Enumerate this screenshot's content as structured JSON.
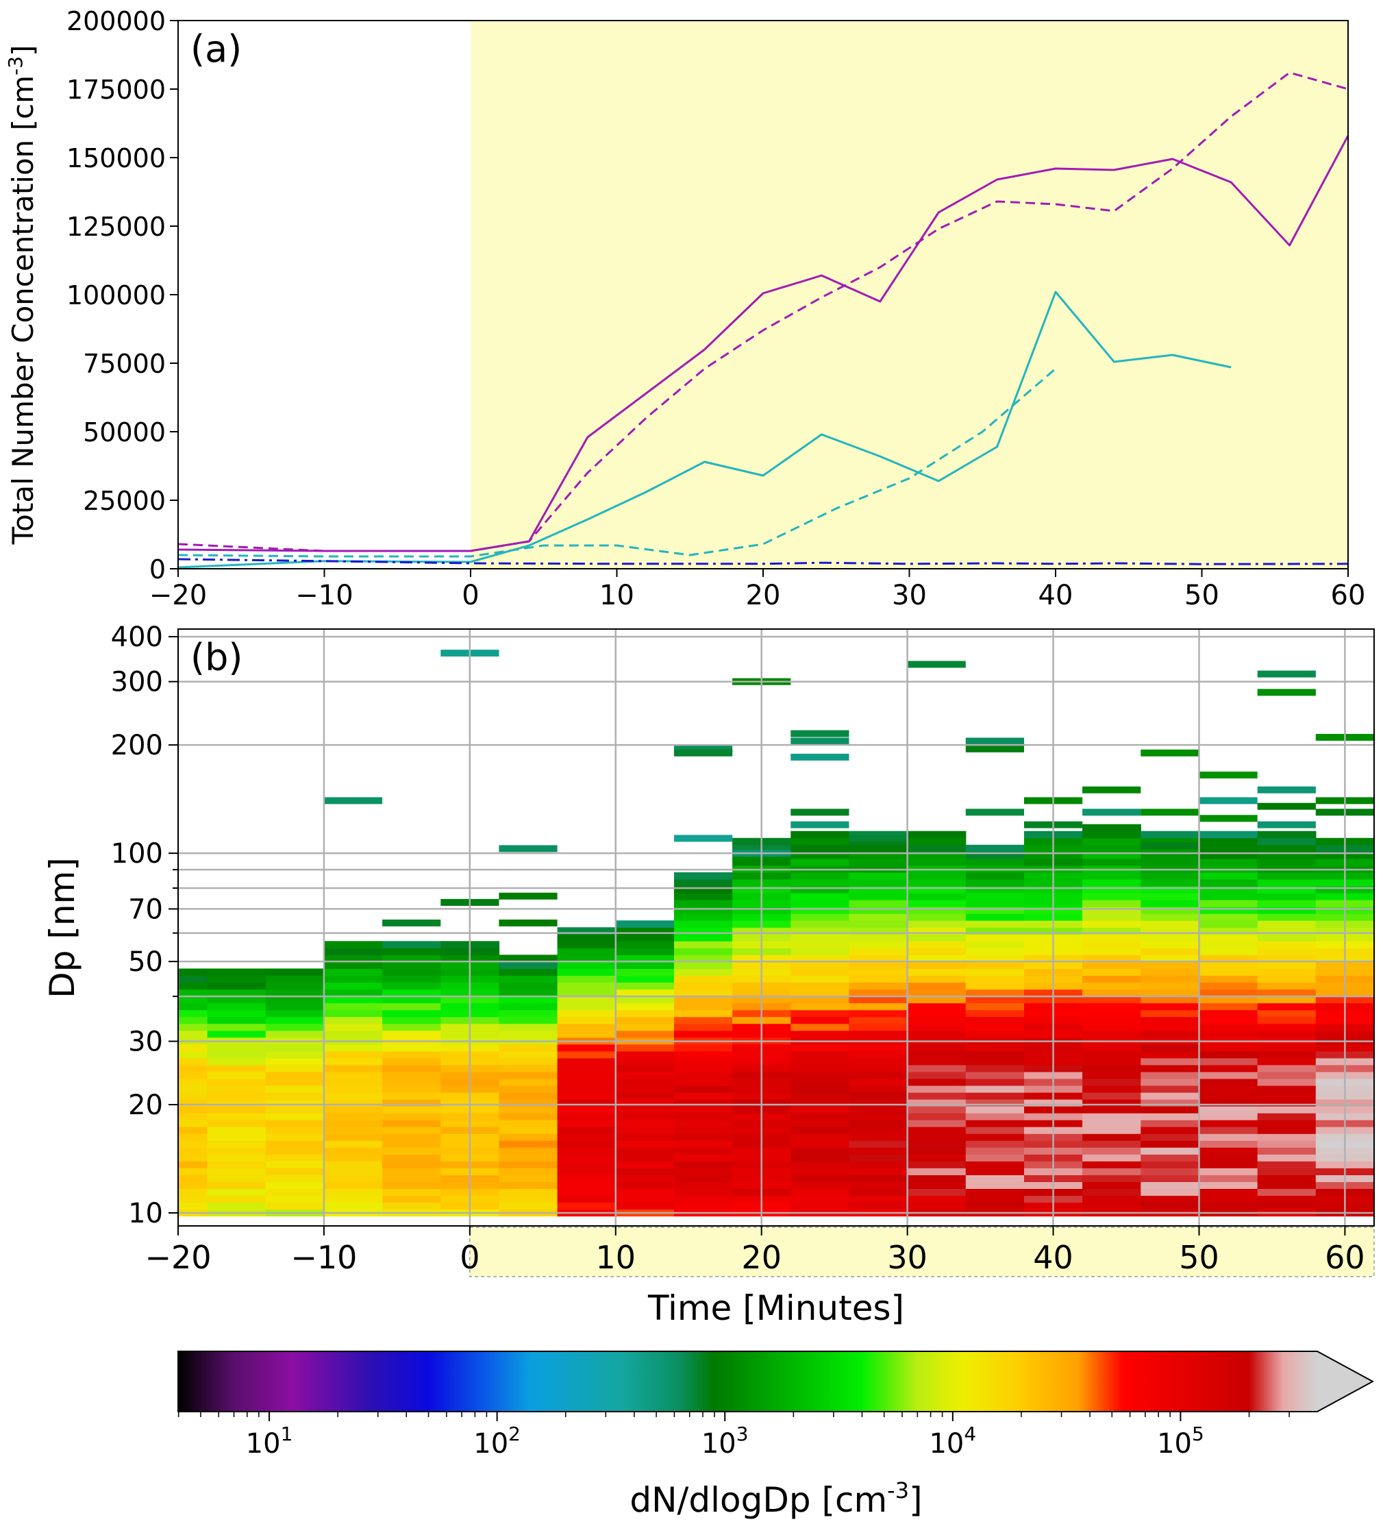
{
  "chart_data": [
    {
      "type": "line",
      "panel": "(a)",
      "title": "",
      "xlabel": "",
      "ylabel": "Total Number Concentration [cm-3]",
      "ylabel_base": "Total Number Concentration [cm",
      "ylabel_sup": "-3",
      "ylabel_close": "]",
      "xlim": [
        -20,
        60
      ],
      "ylim": [
        0,
        200000
      ],
      "xticks": [
        -20,
        -10,
        0,
        10,
        20,
        30,
        40,
        50,
        60
      ],
      "xtick_labels": [
        "−20",
        "−10",
        "0",
        "10",
        "20",
        "30",
        "40",
        "50",
        "60"
      ],
      "yticks": [
        0,
        25000,
        50000,
        75000,
        100000,
        125000,
        150000,
        175000,
        200000
      ],
      "ytick_labels": [
        "0",
        "25000",
        "50000",
        "75000",
        "100000",
        "125000",
        "150000",
        "175000",
        "200000"
      ],
      "shaded_region": {
        "x": [
          0,
          60
        ],
        "color": "#fdfcc6"
      },
      "series": [
        {
          "name": "magenta solid",
          "color": "#a21bb5",
          "style": "solid",
          "x": [
            -20,
            -10,
            0,
            4,
            8,
            16,
            20,
            24,
            28,
            32,
            36,
            40,
            44,
            48,
            52,
            56,
            60
          ],
          "y": [
            7000,
            6500,
            6500,
            10000,
            48000,
            80000,
            100500,
            107000,
            97500,
            130000,
            142000,
            146000,
            145500,
            149500,
            141000,
            118000,
            158000
          ]
        },
        {
          "name": "magenta dashed",
          "color": "#a21bb5",
          "style": "dashed",
          "x": [
            -20,
            -10,
            0,
            4,
            8,
            12,
            16,
            20,
            24,
            28,
            32,
            36,
            40,
            44,
            48,
            52,
            56,
            60
          ],
          "y": [
            9000,
            6500,
            6500,
            10000,
            35000,
            55000,
            73000,
            87000,
            99000,
            110000,
            124000,
            134000,
            133000,
            130500,
            146000,
            165000,
            181000,
            175000
          ]
        },
        {
          "name": "cyan solid",
          "color": "#22b5bf",
          "style": "solid",
          "x": [
            -20,
            -10,
            0,
            4,
            8,
            12,
            16,
            20,
            24,
            28,
            32,
            36,
            40,
            44,
            48,
            52
          ],
          "y": [
            500,
            2800,
            2500,
            8500,
            18000,
            28000,
            39000,
            34000,
            49000,
            41000,
            32000,
            44500,
            101000,
            75500,
            78000,
            73500
          ]
        },
        {
          "name": "cyan dashed",
          "color": "#22b5bf",
          "style": "dashed",
          "x": [
            -20,
            -10,
            0,
            5,
            10,
            15,
            20,
            25,
            30,
            35,
            40
          ],
          "y": [
            5000,
            4500,
            4500,
            8500,
            8500,
            5000,
            9000,
            22000,
            33000,
            50000,
            73000
          ]
        },
        {
          "name": "blue dash-dot",
          "color": "#1a1ad0",
          "style": "dashdot",
          "x": [
            -20,
            -10,
            0,
            10,
            20,
            24,
            30,
            36,
            40,
            44,
            50,
            60
          ],
          "y": [
            3500,
            2800,
            2000,
            1800,
            1800,
            2200,
            1800,
            2000,
            1800,
            2000,
            1700,
            1800
          ]
        }
      ]
    },
    {
      "type": "heatmap",
      "panel": "(b)",
      "xlabel": "Time [Minutes]",
      "ylabel": "Dp [nm]",
      "xlim": [
        -20,
        62
      ],
      "ylim": [
        9.2,
        420
      ],
      "yscale": "log",
      "xticks": [
        -20,
        -10,
        0,
        10,
        20,
        30,
        40,
        50,
        60
      ],
      "xtick_labels": [
        "−20",
        "−10",
        "0",
        "10",
        "20",
        "30",
        "40",
        "50",
        "60"
      ],
      "yticks": [
        10,
        20,
        30,
        50,
        70,
        100,
        200,
        300,
        400
      ],
      "ytick_labels": [
        "10",
        "20",
        "30",
        "50",
        "70",
        "100",
        "200",
        "300",
        "400"
      ],
      "shaded_region": {
        "x": [
          0,
          62
        ],
        "color": "#fdfcc6"
      },
      "column_edges": [
        -20,
        -18,
        -14,
        -10,
        -6,
        -2,
        2,
        6,
        10,
        14,
        18,
        22,
        26,
        30,
        34,
        38,
        42,
        46,
        50,
        54,
        58,
        62
      ],
      "column_tops_nm": [
        47,
        47,
        47,
        57,
        55,
        57,
        50,
        60,
        63,
        88,
        107,
        112,
        115,
        112,
        105,
        112,
        118,
        115,
        112,
        112,
        110
      ],
      "column_peak_log10": [
        4.3,
        4.2,
        4.2,
        4.3,
        4.4,
        4.4,
        4.45,
        5.0,
        5.05,
        5.1,
        5.12,
        5.15,
        5.2,
        5.3,
        5.35,
        5.35,
        5.35,
        5.4,
        5.35,
        5.35,
        5.45
      ],
      "column_sparse_nm": [
        [],
        [],
        [],
        [
          140
        ],
        [
          64
        ],
        [
          360,
          73
        ],
        [
          103,
          76,
          64
        ],
        [],
        [],
        [
          110,
          195,
          190
        ],
        [
          300,
          100
        ],
        [
          215,
          205,
          185,
          130,
          120
        ],
        [
          110
        ],
        [
          335
        ],
        [
          205,
          195,
          130
        ],
        [
          140,
          120
        ],
        [
          150,
          130
        ],
        [
          190,
          130,
          105
        ],
        [
          165,
          140,
          125,
          105
        ],
        [
          315,
          280,
          150,
          135,
          120
        ],
        [
          210,
          140,
          130
        ]
      ],
      "colorbar": {
        "label": "dN/dlogDp [cm-3]",
        "label_base": "dN/dlogDp [cm",
        "label_sup": "-3",
        "label_close": "]",
        "scale": "log",
        "range_log10": [
          0.6,
          5.6
        ],
        "extend": "max",
        "ticks_log10": [
          1,
          2,
          3,
          4,
          5
        ],
        "tick_base": "10",
        "tick_exponents": [
          "1",
          "2",
          "3",
          "4",
          "5"
        ],
        "stops": [
          {
            "v": 0.6,
            "c": "#000000"
          },
          {
            "v": 0.85,
            "c": "#5b0f6e"
          },
          {
            "v": 1.1,
            "c": "#8c0ea2"
          },
          {
            "v": 1.45,
            "c": "#2c0fb3"
          },
          {
            "v": 1.7,
            "c": "#0a0ae0"
          },
          {
            "v": 1.95,
            "c": "#0a5ae8"
          },
          {
            "v": 2.15,
            "c": "#0aa0e0"
          },
          {
            "v": 2.55,
            "c": "#14a6a0"
          },
          {
            "v": 2.8,
            "c": "#0a9060"
          },
          {
            "v": 2.95,
            "c": "#007a00"
          },
          {
            "v": 3.3,
            "c": "#00b800"
          },
          {
            "v": 3.6,
            "c": "#00ee00"
          },
          {
            "v": 3.85,
            "c": "#bcee10"
          },
          {
            "v": 4.05,
            "c": "#eeee00"
          },
          {
            "v": 4.3,
            "c": "#ffcc00"
          },
          {
            "v": 4.55,
            "c": "#ffa000"
          },
          {
            "v": 4.75,
            "c": "#ff0000"
          },
          {
            "v": 5.1,
            "c": "#dd0000"
          },
          {
            "v": 5.3,
            "c": "#c80000"
          },
          {
            "v": 5.45,
            "c": "#e8a8a8"
          },
          {
            "v": 5.6,
            "c": "#d2d2d2"
          }
        ]
      }
    }
  ]
}
